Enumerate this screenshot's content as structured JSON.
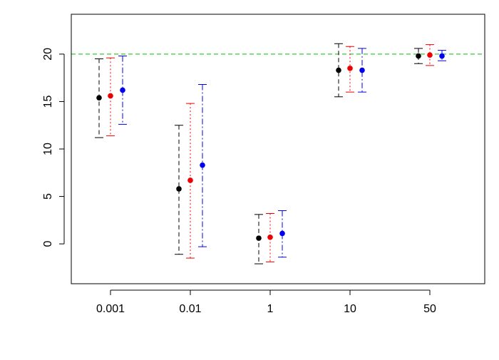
{
  "chart_data": {
    "type": "scatter",
    "title": "",
    "xlabel": "",
    "ylabel": "",
    "categories": [
      "0.001",
      "0.01",
      "1",
      "10",
      "50"
    ],
    "y_ticks": [
      "0",
      "5",
      "10",
      "15",
      "20"
    ],
    "ylim": [
      -4.2,
      24.2
    ],
    "grid": false,
    "legend": "none",
    "reference_line": {
      "y": 20,
      "color": "#33cc33",
      "style": "dashed"
    },
    "series": [
      {
        "color": "#000000",
        "line_style": "dashed",
        "points": [
          {
            "mean": 15.4,
            "lower": 11.2,
            "upper": 19.5
          },
          {
            "mean": 5.8,
            "lower": -1.1,
            "upper": 12.5
          },
          {
            "mean": 0.6,
            "lower": -2.1,
            "upper": 3.1
          },
          {
            "mean": 18.3,
            "lower": 15.5,
            "upper": 21.1
          },
          {
            "mean": 19.8,
            "lower": 19.0,
            "upper": 20.6
          }
        ]
      },
      {
        "color": "#ee0000",
        "line_style": "dotted",
        "points": [
          {
            "mean": 15.6,
            "lower": 11.4,
            "upper": 19.6
          },
          {
            "mean": 6.7,
            "lower": -1.5,
            "upper": 14.8
          },
          {
            "mean": 0.7,
            "lower": -1.9,
            "upper": 3.2
          },
          {
            "mean": 18.5,
            "lower": 16.0,
            "upper": 20.8
          },
          {
            "mean": 19.9,
            "lower": 18.8,
            "upper": 21.0
          }
        ]
      },
      {
        "color": "#0000ee",
        "line_style": "dashdot",
        "points": [
          {
            "mean": 16.2,
            "lower": 12.6,
            "upper": 19.8
          },
          {
            "mean": 8.3,
            "lower": -0.3,
            "upper": 16.8
          },
          {
            "mean": 1.1,
            "lower": -1.4,
            "upper": 3.5
          },
          {
            "mean": 18.3,
            "lower": 16.0,
            "upper": 20.6
          },
          {
            "mean": 19.8,
            "lower": 19.3,
            "upper": 20.4
          }
        ]
      }
    ]
  }
}
